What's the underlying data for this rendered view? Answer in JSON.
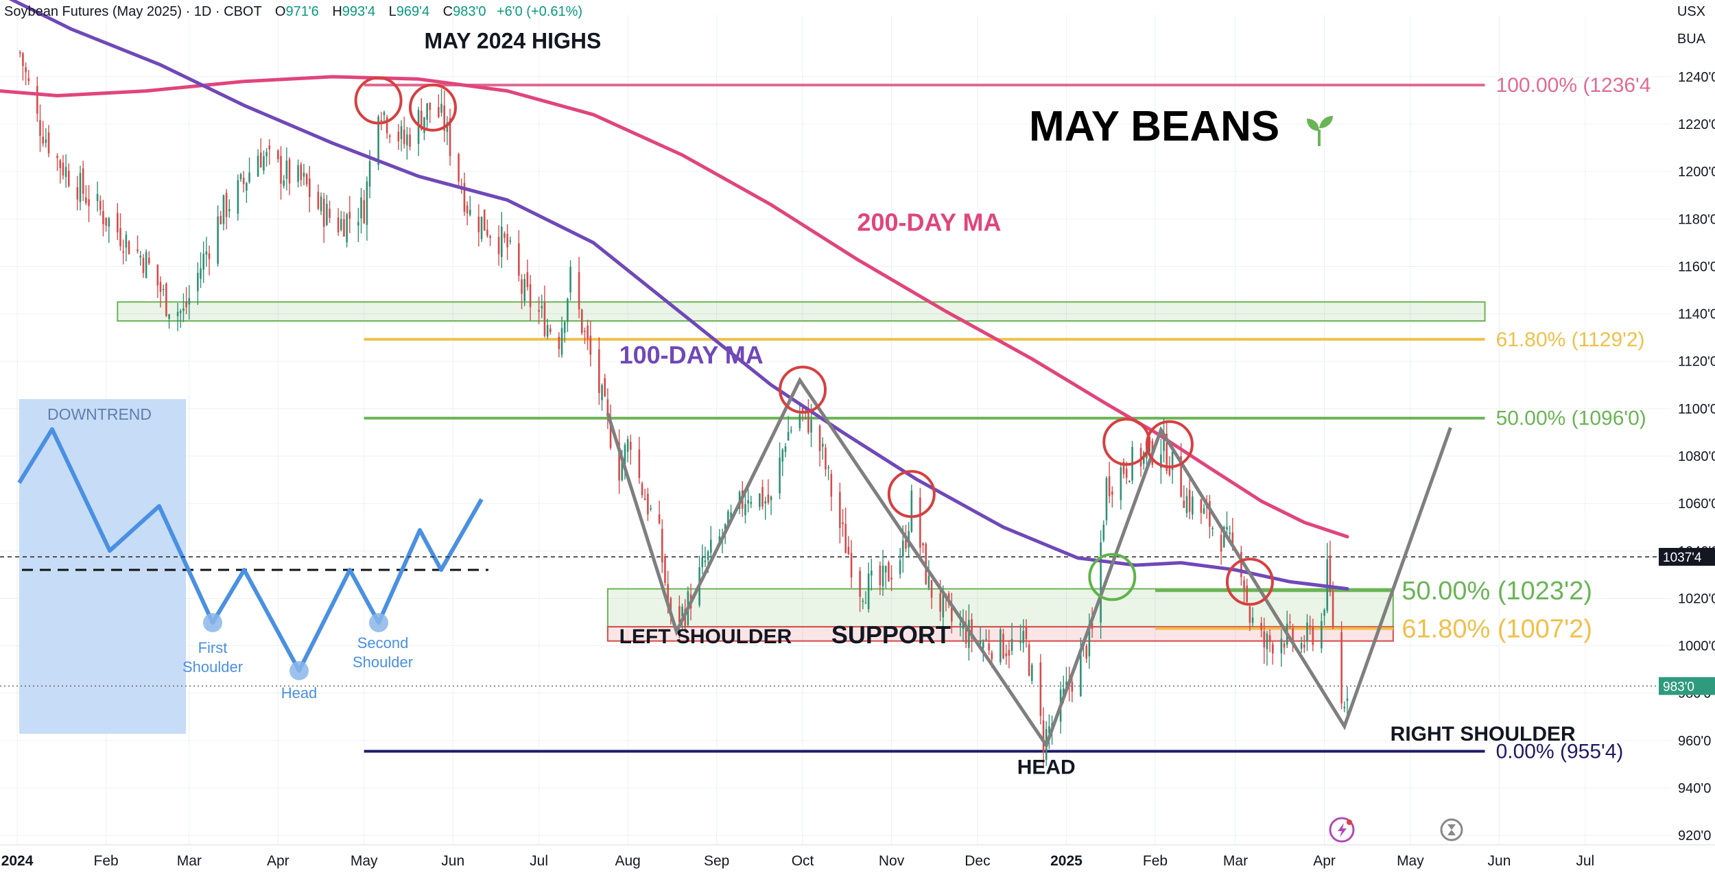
{
  "header": {
    "symbol": "Soybean Futures (May 2025) · 1D · CBOT",
    "open_label": "O",
    "open": "971'6",
    "high_label": "H",
    "high": "993'4",
    "low_label": "L",
    "low": "969'4",
    "close_label": "C",
    "close": "983'0",
    "change": "+6'0 (+0.61%)"
  },
  "corner": {
    "currency": "USX",
    "unit": "BUA"
  },
  "colors": {
    "up": "#2f8f74",
    "down": "#d64a4a",
    "ma200": "#e0457b",
    "ma100": "#7048b8",
    "fib_high": "#e06b93",
    "fib_618": "#efc04a",
    "fib_50": "#6ab455",
    "fib_0": "#1f1a66",
    "circle_red": "#d64040",
    "circle_green": "#5fb34a",
    "pattern": "#7f7f7f",
    "inset_line": "#4a90e2",
    "inset_bg": "#c4daf6"
  },
  "chart_data": {
    "type": "candlestick",
    "title": "MAY BEANS",
    "title_icon": "seedling-icon",
    "x_ticks": [
      "2024",
      "Feb",
      "Mar",
      "Apr",
      "May",
      "Jun",
      "Jul",
      "Aug",
      "Sep",
      "Oct",
      "Nov",
      "Dec",
      "2025",
      "Feb",
      "Mar",
      "Apr",
      "May",
      "Jun",
      "Jul"
    ],
    "y_ticks": [
      "1240'0",
      "1220'0",
      "1200'0",
      "1180'0",
      "1160'0",
      "1140'0",
      "1120'0",
      "1100'0",
      "1080'0",
      "1060'0",
      "1040'0",
      "1020'0",
      "1000'0",
      "980'0",
      "960'0",
      "940'0",
      "920'0"
    ],
    "ylim": [
      916,
      1266
    ],
    "price_path": [
      [
        "2024-01-02",
        1250
      ],
      [
        "2024-01-08",
        1222
      ],
      [
        "2024-01-15",
        1205
      ],
      [
        "2024-01-25",
        1190
      ],
      [
        "2024-02-05",
        1175
      ],
      [
        "2024-02-15",
        1162
      ],
      [
        "2024-02-22",
        1145
      ],
      [
        "2024-02-28",
        1140
      ],
      [
        "2024-03-05",
        1160
      ],
      [
        "2024-03-12",
        1182
      ],
      [
        "2024-03-20",
        1195
      ],
      [
        "2024-03-25",
        1208
      ],
      [
        "2024-04-02",
        1200
      ],
      [
        "2024-04-10",
        1195
      ],
      [
        "2024-04-15",
        1185
      ],
      [
        "2024-04-22",
        1178
      ],
      [
        "2024-05-01",
        1185
      ],
      [
        "2024-05-06",
        1230
      ],
      [
        "2024-05-09",
        1222
      ],
      [
        "2024-05-15",
        1212
      ],
      [
        "2024-05-20",
        1222
      ],
      [
        "2024-05-25",
        1228
      ],
      [
        "2024-05-29",
        1220
      ],
      [
        "2024-06-03",
        1198
      ],
      [
        "2024-06-07",
        1182
      ],
      [
        "2024-06-12",
        1178
      ],
      [
        "2024-06-20",
        1168
      ],
      [
        "2024-06-25",
        1150
      ],
      [
        "2024-07-01",
        1140
      ],
      [
        "2024-07-08",
        1130
      ],
      [
        "2024-07-12",
        1155
      ],
      [
        "2024-07-15",
        1140
      ],
      [
        "2024-07-22",
        1108
      ],
      [
        "2024-07-29",
        1075
      ],
      [
        "2024-08-02",
        1088
      ],
      [
        "2024-08-05",
        1070
      ],
      [
        "2024-08-12",
        1045
      ],
      [
        "2024-08-16",
        1010
      ],
      [
        "2024-08-21",
        1015
      ],
      [
        "2024-08-28",
        1035
      ],
      [
        "2024-09-05",
        1050
      ],
      [
        "2024-09-12",
        1065
      ],
      [
        "2024-09-20",
        1060
      ],
      [
        "2024-09-25",
        1088
      ],
      [
        "2024-09-30",
        1098
      ],
      [
        "2024-10-03",
        1095
      ],
      [
        "2024-10-08",
        1080
      ],
      [
        "2024-10-14",
        1050
      ],
      [
        "2024-10-21",
        1025
      ],
      [
        "2024-10-28",
        1025
      ],
      [
        "2024-11-05",
        1040
      ],
      [
        "2024-11-08",
        1060
      ],
      [
        "2024-11-14",
        1025
      ],
      [
        "2024-11-22",
        1010
      ],
      [
        "2024-12-02",
        1002
      ],
      [
        "2024-12-10",
        1000
      ],
      [
        "2024-12-18",
        1000
      ],
      [
        "2024-12-24",
        960
      ],
      [
        "2024-12-30",
        975
      ],
      [
        "2025-01-06",
        995
      ],
      [
        "2025-01-10",
        1005
      ],
      [
        "2025-01-15",
        1068
      ],
      [
        "2025-01-21",
        1075
      ],
      [
        "2025-01-28",
        1080
      ],
      [
        "2025-02-03",
        1085
      ],
      [
        "2025-02-06",
        1078
      ],
      [
        "2025-02-12",
        1062
      ],
      [
        "2025-02-18",
        1055
      ],
      [
        "2025-02-25",
        1045
      ],
      [
        "2025-03-03",
        1035
      ],
      [
        "2025-03-06",
        1012
      ],
      [
        "2025-03-11",
        1000
      ],
      [
        "2025-03-17",
        1005
      ],
      [
        "2025-03-24",
        1000
      ],
      [
        "2025-03-31",
        1010
      ],
      [
        "2025-04-02",
        1030
      ],
      [
        "2025-04-04",
        1010
      ],
      [
        "2025-04-07",
        975
      ],
      [
        "2025-04-09",
        983
      ]
    ],
    "series": [
      {
        "name": "200-DAY MA",
        "color_key": "ma200",
        "path": [
          [
            "2023-12-26",
            1234
          ],
          [
            "2024-01-15",
            1232
          ],
          [
            "2024-02-15",
            1234
          ],
          [
            "2024-03-20",
            1238
          ],
          [
            "2024-04-20",
            1240
          ],
          [
            "2024-05-20",
            1239
          ],
          [
            "2024-06-20",
            1234
          ],
          [
            "2024-07-20",
            1224
          ],
          [
            "2024-08-20",
            1207
          ],
          [
            "2024-09-20",
            1186
          ],
          [
            "2024-10-20",
            1163
          ],
          [
            "2024-11-20",
            1141
          ],
          [
            "2024-12-20",
            1121
          ],
          [
            "2025-01-15",
            1102
          ],
          [
            "2025-02-01",
            1090
          ],
          [
            "2025-02-20",
            1075
          ],
          [
            "2025-03-10",
            1061
          ],
          [
            "2025-03-25",
            1052
          ],
          [
            "2025-04-09",
            1046
          ]
        ]
      },
      {
        "name": "100-DAY MA",
        "color_key": "ma100",
        "path": [
          [
            "2023-12-26",
            1275
          ],
          [
            "2024-01-20",
            1260
          ],
          [
            "2024-02-20",
            1245
          ],
          [
            "2024-03-20",
            1228
          ],
          [
            "2024-04-20",
            1212
          ],
          [
            "2024-05-20",
            1198
          ],
          [
            "2024-06-20",
            1188
          ],
          [
            "2024-07-20",
            1170
          ],
          [
            "2024-08-20",
            1140
          ],
          [
            "2024-09-20",
            1110
          ],
          [
            "2024-10-15",
            1090
          ],
          [
            "2024-11-10",
            1070
          ],
          [
            "2024-12-10",
            1050
          ],
          [
            "2025-01-05",
            1037
          ],
          [
            "2025-01-25",
            1034
          ],
          [
            "2025-02-10",
            1035
          ],
          [
            "2025-03-01",
            1032
          ],
          [
            "2025-03-20",
            1027
          ],
          [
            "2025-04-09",
            1024
          ]
        ]
      }
    ],
    "fib_levels": [
      {
        "label": "100.00% (1236'4",
        "value": 1236.5,
        "color_key": "fib_high"
      },
      {
        "label": "61.80% (1129'2)",
        "value": 1129.25,
        "color_key": "fib_618"
      },
      {
        "label": "50.00% (1096'0)",
        "value": 1096,
        "color_key": "fib_50"
      },
      {
        "label": "0.00% (955'4)",
        "value": 955.5,
        "color_key": "fib_0"
      }
    ],
    "inner_fib_levels": [
      {
        "label": "50.00% (1023'2)",
        "value": 1023.25,
        "color_key": "fib_50"
      },
      {
        "label": "61.80% (1007'2)",
        "value": 1007.25,
        "color_key": "fib_618"
      }
    ],
    "price_tags": [
      {
        "label": "1037'4",
        "value": 1037.5,
        "style": "dark",
        "line": "dashed"
      },
      {
        "label": "983'0",
        "value": 983,
        "style": "green",
        "line": "dotted"
      }
    ],
    "zones": [
      {
        "from": "2024-02-05",
        "to": "2025-05-27",
        "low": 1137,
        "high": 1145,
        "color_key": "fib_50"
      },
      {
        "from": "2024-07-25",
        "to": "2025-04-25",
        "low": 1008,
        "high": 1024,
        "color_key": "fib_50"
      },
      {
        "from": "2024-07-25",
        "to": "2025-04-25",
        "low": 1002,
        "high": 1008,
        "color_key": "down"
      }
    ],
    "pattern_path": [
      [
        "2024-07-25",
        1098
      ],
      [
        "2024-08-18",
        1006
      ],
      [
        "2024-09-30",
        1112
      ],
      [
        "2024-12-25",
        958
      ],
      [
        "2025-02-03",
        1091
      ],
      [
        "2025-04-08",
        966
      ],
      [
        "2025-05-15",
        1092
      ]
    ],
    "circles": [
      {
        "x": "2024-05-06",
        "y": 1230,
        "color_key": "circle_red"
      },
      {
        "x": "2024-05-25",
        "y": 1227,
        "color_key": "circle_red"
      },
      {
        "x": "2024-10-01",
        "y": 1108,
        "color_key": "circle_red"
      },
      {
        "x": "2024-11-08",
        "y": 1064,
        "color_key": "circle_red"
      },
      {
        "x": "2025-01-22",
        "y": 1086,
        "color_key": "circle_red"
      },
      {
        "x": "2025-02-06",
        "y": 1085,
        "color_key": "circle_red"
      },
      {
        "x": "2025-03-06",
        "y": 1027,
        "color_key": "circle_red"
      },
      {
        "x": "2025-01-17",
        "y": 1029,
        "color_key": "circle_green"
      }
    ],
    "annotations": [
      {
        "text": "MAY 2024 HIGHS",
        "x": "2024-05-22",
        "y": 1252,
        "color": "#131722",
        "size": 32,
        "anchor": "start"
      },
      {
        "text": "200-DAY MA",
        "x": "2024-10-20",
        "y": 1175,
        "color": "#e0457b",
        "size": 36,
        "anchor": "start"
      },
      {
        "text": "100-DAY MA",
        "x": "2024-07-29",
        "y": 1119,
        "color": "#7048b8",
        "size": 36,
        "anchor": "start"
      },
      {
        "text": "LEFT SHOULDER",
        "x": "2024-07-29",
        "y": 1001,
        "color": "#131722",
        "size": 30,
        "anchor": "start"
      },
      {
        "text": "SUPPORT",
        "x": "2024-10-11",
        "y": 1001,
        "color": "#131722",
        "size": 36,
        "anchor": "start"
      },
      {
        "text": "HEAD",
        "x": "2024-12-25",
        "y": 946,
        "color": "#131722",
        "size": 30,
        "anchor": "middle"
      },
      {
        "text": "RIGHT SHOULDER",
        "x": "2025-04-24",
        "y": 960,
        "color": "#131722",
        "size": 30,
        "anchor": "start"
      }
    ]
  },
  "inset": {
    "title": "DOWNTREND",
    "first_shoulder": [
      "First",
      "Shoulder"
    ],
    "head": "Head",
    "second_shoulder": [
      "Second",
      "Shoulder"
    ]
  },
  "bottom_icons": [
    "lightning-icon",
    "hourglass-icon"
  ]
}
